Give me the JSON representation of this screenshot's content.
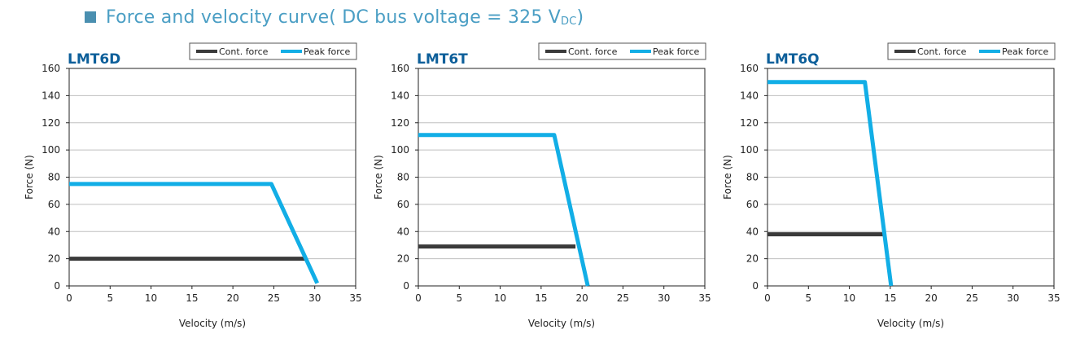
{
  "header": {
    "title_main": "Force and velocity curve( DC bus voltage = 325 V",
    "title_sub": "DC",
    "title_close": ")",
    "bullet_color": "#4a8fb0",
    "title_color": "#4a9ec4"
  },
  "colors": {
    "cont": "#3a3a3a",
    "peak": "#12aee6",
    "title": "#0d5f9a",
    "grid": "#bfbfbf"
  },
  "chart_data": [
    {
      "type": "line",
      "title": "LMT6D",
      "xlabel": "Velocity (m/s)",
      "ylabel": "Force (N)",
      "xlim": [
        0,
        35
      ],
      "ylim": [
        0,
        160
      ],
      "xticks": [
        0,
        5,
        10,
        15,
        20,
        25,
        30,
        35
      ],
      "yticks": [
        0,
        20,
        40,
        60,
        80,
        100,
        120,
        140,
        160
      ],
      "grid": true,
      "legend_position": "top-right",
      "series": [
        {
          "name": "Cont. force",
          "key": "cont",
          "x": [
            0,
            29
          ],
          "y": [
            20,
            20
          ]
        },
        {
          "name": "Peak force",
          "key": "peak",
          "x": [
            0,
            24.7,
            30.3
          ],
          "y": [
            75,
            75,
            2
          ]
        }
      ]
    },
    {
      "type": "line",
      "title": "LMT6T",
      "xlabel": "Velocity (m/s)",
      "ylabel": "Force (N)",
      "xlim": [
        0,
        35
      ],
      "ylim": [
        0,
        160
      ],
      "xticks": [
        0,
        5,
        10,
        15,
        20,
        25,
        30,
        35
      ],
      "yticks": [
        0,
        20,
        40,
        60,
        80,
        100,
        120,
        140,
        160
      ],
      "grid": true,
      "legend_position": "top-right",
      "series": [
        {
          "name": "Cont. force",
          "key": "cont",
          "x": [
            0,
            19.2
          ],
          "y": [
            29,
            29
          ]
        },
        {
          "name": "Peak force",
          "key": "peak",
          "x": [
            0,
            16.6,
            20.7
          ],
          "y": [
            111,
            111,
            0
          ]
        }
      ]
    },
    {
      "type": "line",
      "title": "LMT6Q",
      "xlabel": "Velocity (m/s)",
      "ylabel": "Force (N)",
      "xlim": [
        0,
        35
      ],
      "ylim": [
        0,
        160
      ],
      "xticks": [
        0,
        5,
        10,
        15,
        20,
        25,
        30,
        35
      ],
      "yticks": [
        0,
        20,
        40,
        60,
        80,
        100,
        120,
        140,
        160
      ],
      "grid": true,
      "legend_position": "top-right",
      "series": [
        {
          "name": "Cont. force",
          "key": "cont",
          "x": [
            0,
            14.3
          ],
          "y": [
            38,
            38
          ]
        },
        {
          "name": "Peak force",
          "key": "peak",
          "x": [
            0,
            11.9,
            15.1
          ],
          "y": [
            150,
            150,
            0
          ]
        }
      ]
    }
  ]
}
